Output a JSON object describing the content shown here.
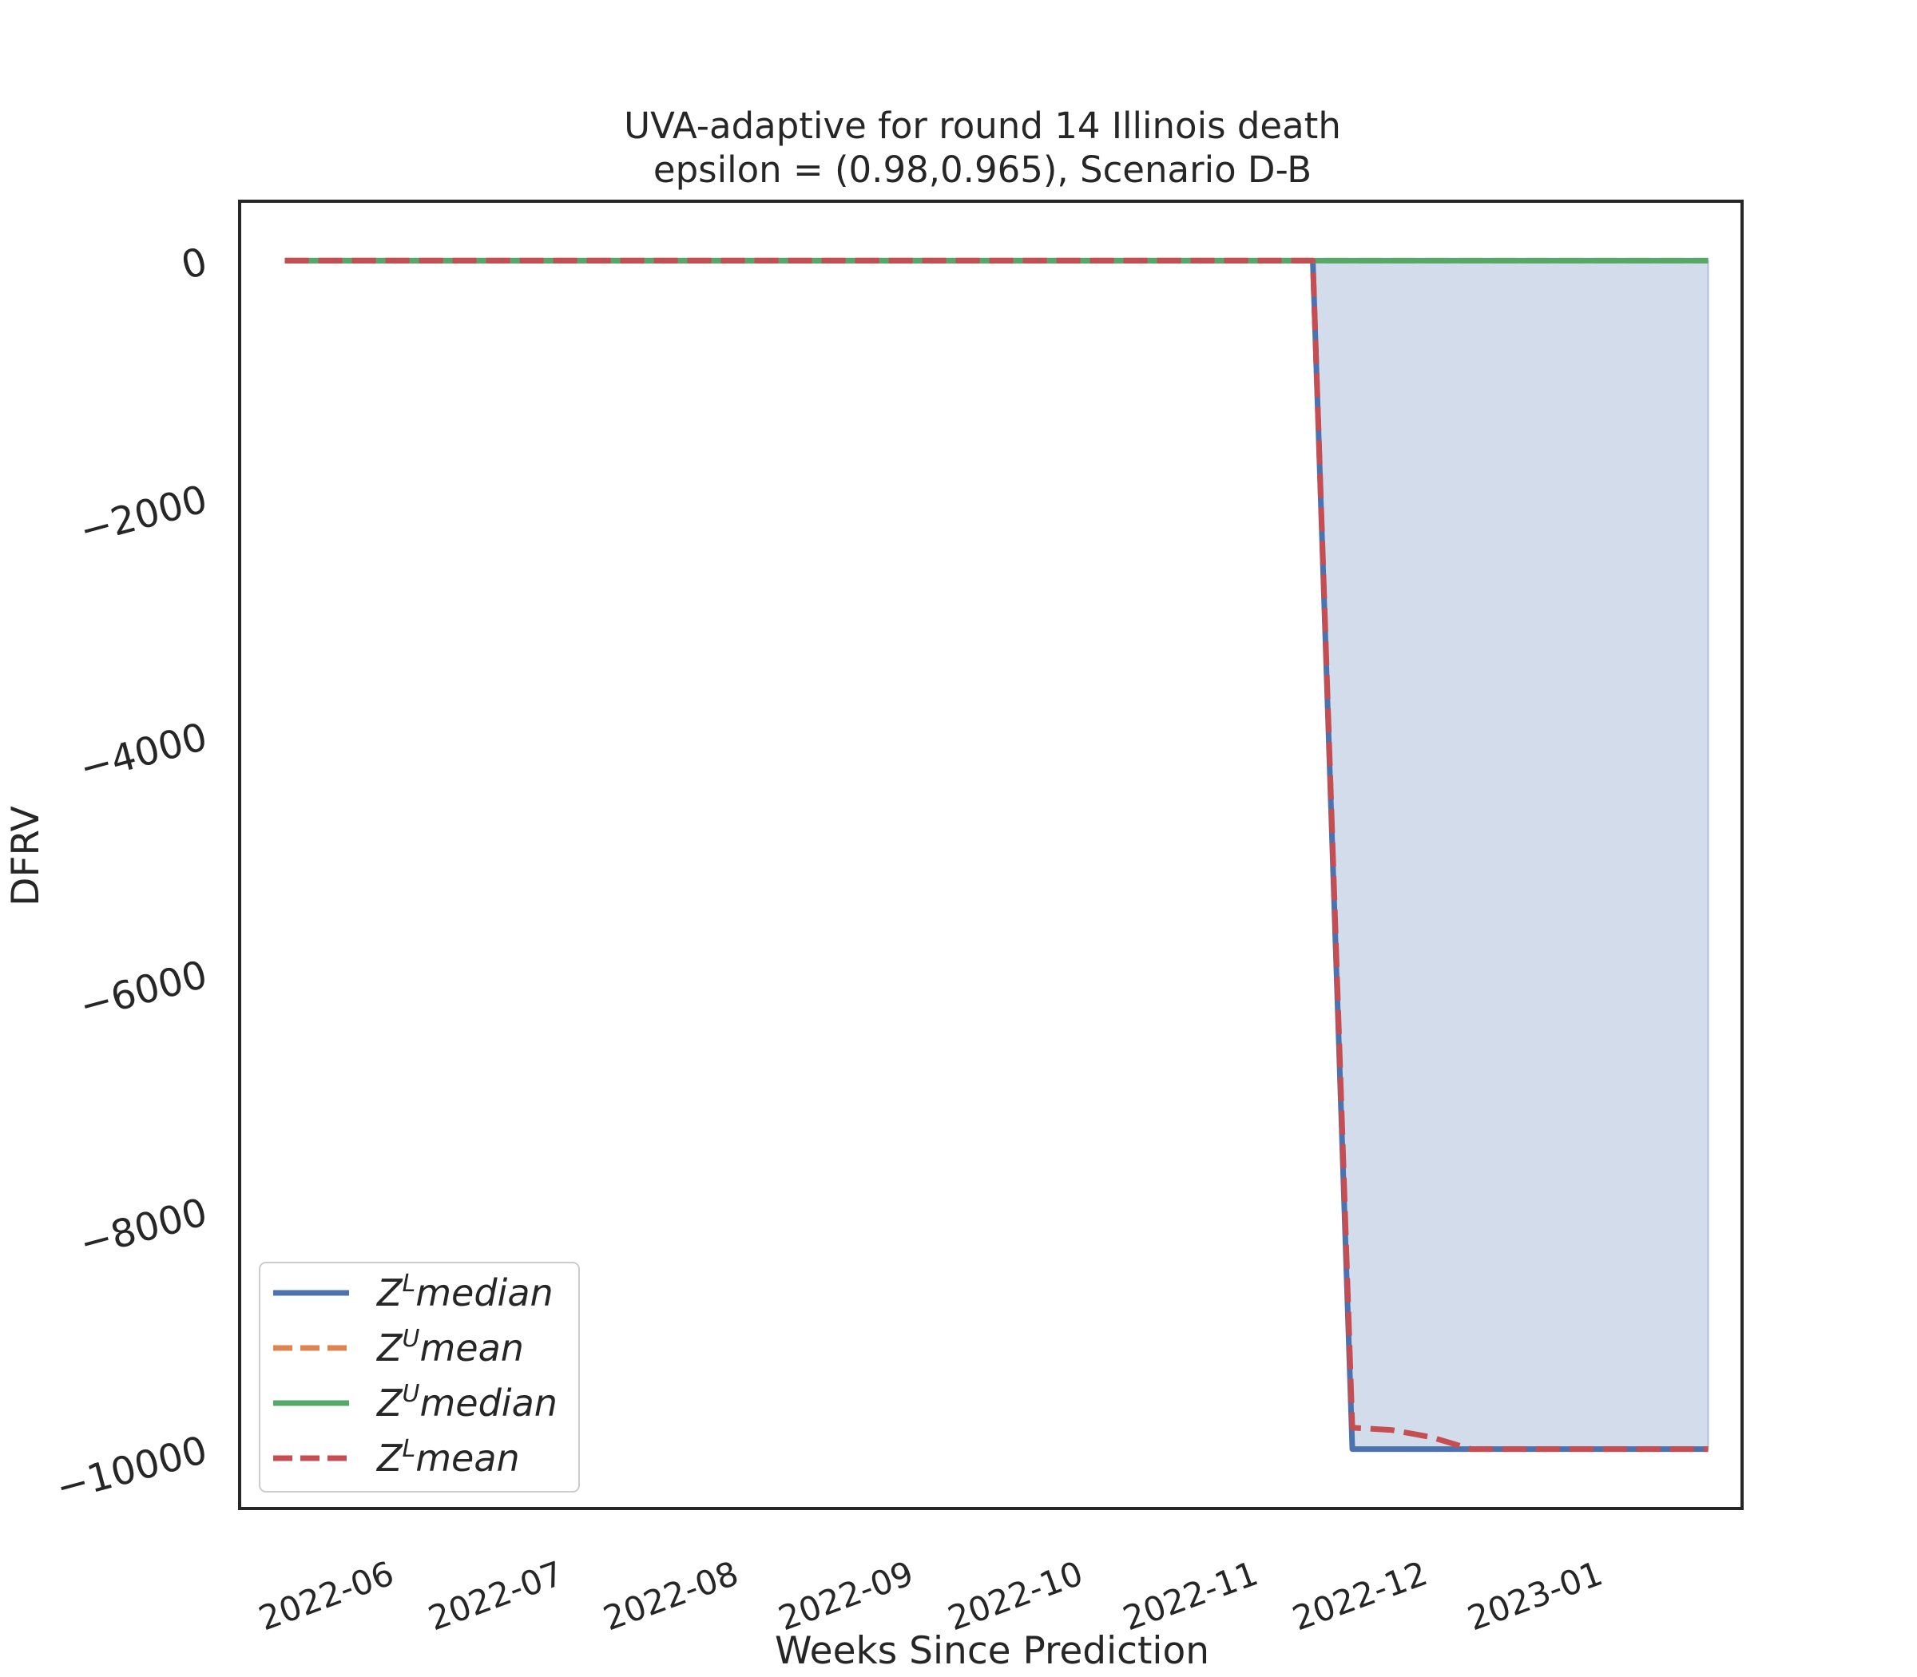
{
  "chart_data": {
    "type": "line",
    "title_line1": "UVA-adaptive for round 14 Illinois  death",
    "title_line2": "epsilon = (0.98,0.965), Scenario D-B",
    "xlabel": "Weeks Since Prediction",
    "ylabel": "DFRV",
    "x_tick_labels": [
      "2022-06",
      "2022-07",
      "2022-08",
      "2022-09",
      "2022-10",
      "2022-11",
      "2022-12",
      "2023-01"
    ],
    "y_ticks": [
      0,
      -2000,
      -4000,
      -6000,
      -8000,
      -10000
    ],
    "y_tick_labels": [
      "0",
      "−2000",
      "−4000",
      "−6000",
      "−8000",
      "−10000"
    ],
    "xlim": [
      "2022-05-06",
      "2023-01-27"
    ],
    "ylim": [
      -10500,
      500
    ],
    "grid": false,
    "legend_position": "lower-left",
    "x": [
      "2022-05-14",
      "2022-05-21",
      "2022-05-28",
      "2022-06-04",
      "2022-06-11",
      "2022-06-18",
      "2022-06-25",
      "2022-07-02",
      "2022-07-09",
      "2022-07-16",
      "2022-07-23",
      "2022-07-30",
      "2022-08-06",
      "2022-08-13",
      "2022-08-20",
      "2022-08-27",
      "2022-09-03",
      "2022-09-10",
      "2022-09-17",
      "2022-09-24",
      "2022-10-01",
      "2022-10-08",
      "2022-10-15",
      "2022-10-22",
      "2022-10-29",
      "2022-11-05",
      "2022-11-12",
      "2022-11-19",
      "2022-11-26",
      "2022-12-03",
      "2022-12-10",
      "2022-12-17",
      "2022-12-24",
      "2022-12-31",
      "2023-01-07",
      "2023-01-14",
      "2023-01-21"
    ],
    "series": [
      {
        "name": "Z^L median",
        "color": "#4c72b0",
        "dash": "solid",
        "values": [
          0,
          0,
          0,
          0,
          0,
          0,
          0,
          0,
          0,
          0,
          0,
          0,
          0,
          0,
          0,
          0,
          0,
          0,
          0,
          0,
          0,
          0,
          0,
          0,
          0,
          0,
          0,
          -10000,
          -10000,
          -10000,
          -10000,
          -10000,
          -10000,
          -10000,
          -10000,
          -10000,
          -10000
        ]
      },
      {
        "name": "Z^U mean",
        "color": "#dd8452",
        "dash": "dashed",
        "values": [
          0,
          0,
          0,
          0,
          0,
          0,
          0,
          0,
          0,
          0,
          0,
          0,
          0,
          0,
          0,
          0,
          0,
          0,
          0,
          0,
          0,
          0,
          0,
          0,
          0,
          0,
          0,
          0,
          0,
          0,
          0,
          0,
          0,
          0,
          0,
          0,
          0
        ]
      },
      {
        "name": "Z^U median",
        "color": "#55a868",
        "dash": "solid",
        "values": [
          0,
          0,
          0,
          0,
          0,
          0,
          0,
          0,
          0,
          0,
          0,
          0,
          0,
          0,
          0,
          0,
          0,
          0,
          0,
          0,
          0,
          0,
          0,
          0,
          0,
          0,
          0,
          0,
          0,
          0,
          0,
          0,
          0,
          0,
          0,
          0,
          0
        ]
      },
      {
        "name": "Z^L mean",
        "color": "#c44e52",
        "dash": "dashed",
        "values": [
          0,
          0,
          0,
          0,
          0,
          0,
          0,
          0,
          0,
          0,
          0,
          0,
          0,
          0,
          0,
          0,
          0,
          0,
          0,
          0,
          0,
          0,
          0,
          0,
          0,
          0,
          0,
          -9820,
          -9840,
          -9900,
          -10000,
          -10000,
          -10000,
          -10000,
          -10000,
          -10000,
          -10000
        ]
      }
    ],
    "fill_between": {
      "lower": "Z^L median",
      "upper": "Z^U median",
      "color": "#4c72b0",
      "opacity": 0.25
    },
    "legend": [
      {
        "base": "Z",
        "sup": "L",
        "label": "median",
        "color": "#4c72b0",
        "dash": "solid"
      },
      {
        "base": "Z",
        "sup": "U",
        "label": "mean",
        "color": "#dd8452",
        "dash": "dashed"
      },
      {
        "base": "Z",
        "sup": "U",
        "label": "median",
        "color": "#55a868",
        "dash": "solid"
      },
      {
        "base": "Z",
        "sup": "L",
        "label": "mean",
        "color": "#c44e52",
        "dash": "dashed"
      }
    ]
  }
}
